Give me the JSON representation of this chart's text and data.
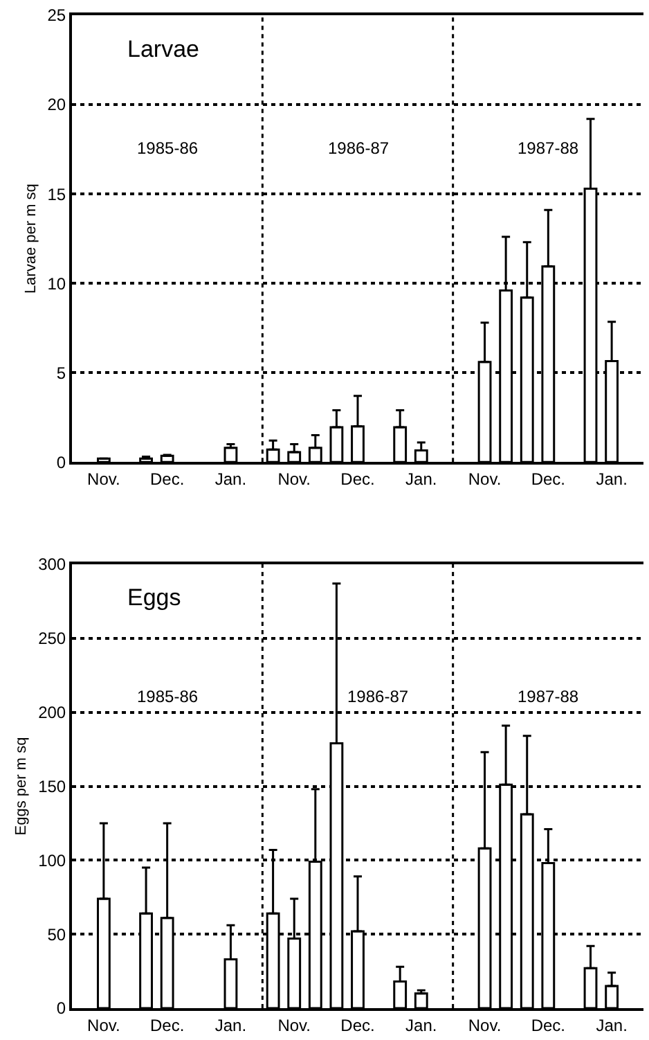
{
  "chart_data": [
    {
      "type": "bar",
      "title": "Larvae",
      "ylabel": "Larvae per m sq",
      "color": "#ffffff",
      "categories": [
        null,
        "Nov.",
        null,
        null,
        "Dec.",
        null,
        null,
        "Jan.",
        null,
        null,
        "Nov.",
        null,
        null,
        "Dec.",
        null,
        null,
        "Jan.",
        null,
        null,
        "Nov.",
        null,
        null,
        "Dec.",
        null,
        null,
        "Jan.",
        null
      ],
      "values": [
        null,
        0.2,
        null,
        0.2,
        0.35,
        null,
        null,
        0.8,
        null,
        0.7,
        0.55,
        0.8,
        1.95,
        2.0,
        null,
        1.95,
        0.65,
        null,
        null,
        5.6,
        9.6,
        9.2,
        10.95,
        null,
        15.3,
        5.65,
        null
      ],
      "errors": [
        null,
        null,
        null,
        [
          0.2,
          0.3
        ],
        [
          0.35,
          0.4
        ],
        null,
        null,
        [
          0.8,
          1.0
        ],
        null,
        [
          0.7,
          1.2
        ],
        [
          0.55,
          1.0
        ],
        [
          0.8,
          1.5
        ],
        [
          1.95,
          2.9
        ],
        [
          2.0,
          3.7
        ],
        null,
        [
          1.95,
          2.9
        ],
        [
          0.65,
          1.1
        ],
        null,
        null,
        [
          5.6,
          7.8
        ],
        [
          9.6,
          12.6
        ],
        [
          9.2,
          12.3
        ],
        [
          10.95,
          14.1
        ],
        null,
        [
          15.3,
          19.2
        ],
        [
          5.65,
          7.85
        ],
        null
      ],
      "ylim": [
        0,
        25
      ],
      "yticks": [
        0,
        5,
        10,
        15,
        20,
        25
      ],
      "grid": "y",
      "annotations": [
        "1985-86",
        "1986-87",
        "1987-88"
      ]
    },
    {
      "type": "bar",
      "title": "Eggs",
      "ylabel": "Eggs per m sq",
      "color": "#ffffff",
      "categories": [
        null,
        "Nov.",
        null,
        null,
        "Dec.",
        null,
        null,
        "Jan.",
        null,
        null,
        "Nov.",
        null,
        null,
        "Dec.",
        null,
        null,
        "Jan.",
        null,
        null,
        "Nov.",
        null,
        null,
        "Dec.",
        null,
        null,
        "Jan.",
        null
      ],
      "values": [
        null,
        74,
        null,
        64,
        61,
        null,
        null,
        33,
        null,
        64,
        47,
        99,
        179,
        52,
        null,
        18,
        10,
        null,
        null,
        108,
        151,
        131,
        98,
        null,
        27,
        15,
        null
      ],
      "errors": [
        null,
        [
          74,
          125
        ],
        null,
        [
          64,
          95
        ],
        [
          61,
          125
        ],
        null,
        null,
        [
          33,
          56
        ],
        null,
        [
          64,
          107
        ],
        [
          47,
          74
        ],
        [
          99,
          148
        ],
        [
          179,
          287
        ],
        [
          52,
          89
        ],
        null,
        [
          18,
          28
        ],
        [
          10,
          12
        ],
        null,
        null,
        [
          108,
          173
        ],
        [
          151,
          191
        ],
        [
          131,
          184
        ],
        [
          98,
          121
        ],
        null,
        [
          27,
          42
        ],
        [
          15,
          24
        ],
        null
      ],
      "ylim": [
        0,
        300
      ],
      "yticks": [
        0,
        50,
        100,
        150,
        200,
        250,
        300
      ],
      "grid": "y",
      "annotations": [
        "1985-86",
        "1986-87",
        "1987-88"
      ]
    }
  ]
}
